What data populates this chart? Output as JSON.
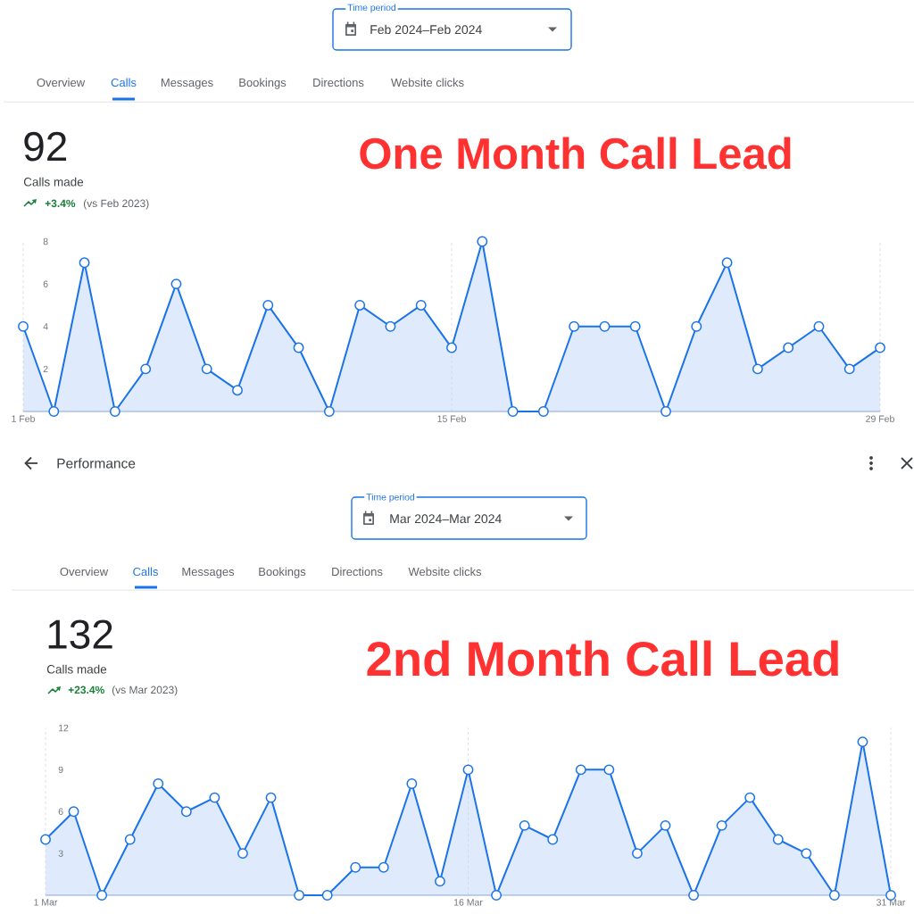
{
  "chart_data": [
    {
      "type": "area",
      "title": "One Month Call Lead",
      "annotations": [
        "Time period",
        "Feb 2024–Feb 2024",
        "Overview",
        "Calls",
        "Messages",
        "Bookings",
        "Directions",
        "Website clicks",
        "92",
        "Calls made",
        "+3.4%",
        "(vs Feb 2023)"
      ],
      "x": [
        "2024-02-01",
        "2024-02-02",
        "2024-02-03",
        "2024-02-04",
        "2024-02-05",
        "2024-02-06",
        "2024-02-07",
        "2024-02-08",
        "2024-02-09",
        "2024-02-10",
        "2024-02-11",
        "2024-02-12",
        "2024-02-13",
        "2024-02-14",
        "2024-02-15",
        "2024-02-16",
        "2024-02-17",
        "2024-02-18",
        "2024-02-19",
        "2024-02-20",
        "2024-02-21",
        "2024-02-22",
        "2024-02-23",
        "2024-02-24",
        "2024-02-25",
        "2024-02-26",
        "2024-02-27",
        "2024-02-28",
        "2024-02-29"
      ],
      "values": [
        4,
        0,
        7,
        0,
        2,
        6,
        2,
        1,
        5,
        3,
        0,
        5,
        4,
        5,
        3,
        8,
        0,
        0,
        4,
        4,
        4,
        0,
        4,
        7,
        2,
        3,
        4,
        2,
        3
      ],
      "color": "#1a73e8",
      "xlim": [
        "2024-02-01",
        "2024-02-29"
      ],
      "xticks": [
        {
          "value": "2024-02-01",
          "label": "1 Feb"
        },
        {
          "value": "2024-02-15",
          "label": "15 Feb"
        },
        {
          "value": "2024-02-29",
          "label": "29 Feb"
        }
      ],
      "ylim": [
        0,
        8
      ],
      "yticks": [
        2,
        4,
        6,
        8
      ],
      "grid": "x",
      "marker": "circle",
      "line_style": "solid"
    },
    {
      "type": "area",
      "title": "2nd Month Call Lead",
      "annotations": [
        "Performance",
        "Time period",
        "Mar 2024–Mar 2024",
        "Overview",
        "Calls",
        "Messages",
        "Bookings",
        "Directions",
        "Website clicks",
        "132",
        "Calls made",
        "+23.4%",
        "(vs Mar 2023)"
      ],
      "x": [
        "2024-03-01",
        "2024-03-02",
        "2024-03-03",
        "2024-03-04",
        "2024-03-05",
        "2024-03-06",
        "2024-03-07",
        "2024-03-08",
        "2024-03-09",
        "2024-03-10",
        "2024-03-11",
        "2024-03-12",
        "2024-03-13",
        "2024-03-14",
        "2024-03-15",
        "2024-03-16",
        "2024-03-17",
        "2024-03-18",
        "2024-03-19",
        "2024-03-20",
        "2024-03-21",
        "2024-03-22",
        "2024-03-23",
        "2024-03-24",
        "2024-03-25",
        "2024-03-26",
        "2024-03-27",
        "2024-03-28",
        "2024-03-29",
        "2024-03-30",
        "2024-03-31"
      ],
      "values": [
        4,
        6,
        0,
        4,
        8,
        6,
        7,
        3,
        7,
        0,
        0,
        2,
        2,
        8,
        1,
        9,
        0,
        5,
        4,
        9,
        9,
        3,
        5,
        0,
        5,
        7,
        4,
        3,
        0,
        11,
        0
      ],
      "color": "#1a73e8",
      "xlim": [
        "2024-03-01",
        "2024-03-31"
      ],
      "xticks": [
        {
          "value": "2024-03-01",
          "label": "1 Mar"
        },
        {
          "value": "2024-03-16",
          "label": "16 Mar"
        },
        {
          "value": "2024-03-31",
          "label": "31 Mar"
        }
      ],
      "ylim": [
        0,
        12
      ],
      "yticks": [
        3,
        6,
        9,
        12
      ],
      "grid": "x",
      "marker": "circle",
      "line_style": "solid"
    }
  ]
}
